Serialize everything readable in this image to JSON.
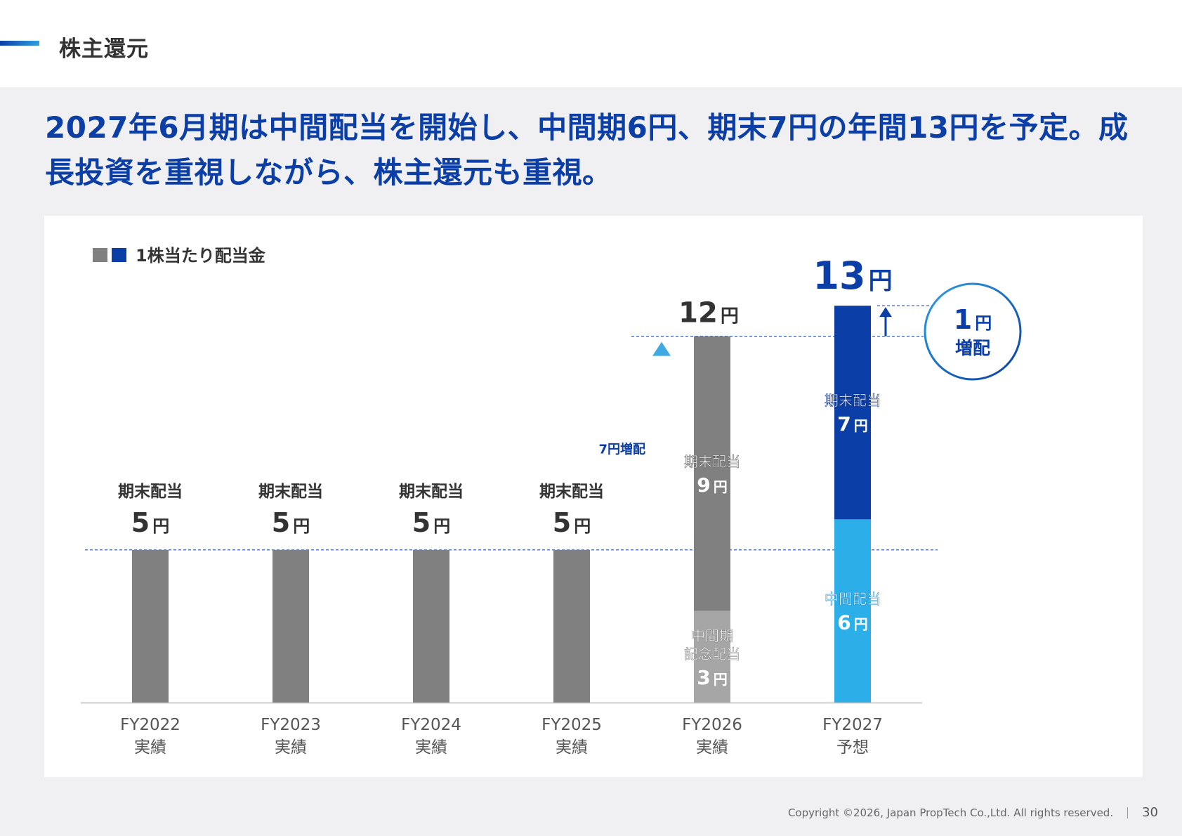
{
  "header": {
    "section_title": "株主還元"
  },
  "headline": "2027年6月期は中間配当を開始し、中間期6円、期末7円の年間13円を予定。成長投資を重視しながら、株主還元も重視。",
  "footer": {
    "copyright": "Copyright ©2026, Japan PropTech Co.,Ltd. All rights reserved.",
    "page_number": "30"
  },
  "colors": {
    "actual_gray": "#808080",
    "commemorative_gray": "#a6a6a6",
    "year_end_blue": "#0b3ea6",
    "interim_blue": "#2caee8"
  },
  "chart_data": {
    "type": "bar",
    "stacked": true,
    "legend": {
      "label": "1株当たり配当金",
      "placement": "top-left"
    },
    "unit": "円",
    "ylim": [
      0,
      13
    ],
    "categories": [
      {
        "year": "FY2022",
        "status": "実績"
      },
      {
        "year": "FY2023",
        "status": "実績"
      },
      {
        "year": "FY2024",
        "status": "実績"
      },
      {
        "year": "FY2025",
        "status": "実績"
      },
      {
        "year": "FY2026",
        "status": "実績"
      },
      {
        "year": "FY2027",
        "status": "予想"
      }
    ],
    "bars": [
      {
        "total": 5,
        "segments": [
          {
            "label": "期末配当",
            "value": 5,
            "color": "#808080",
            "style": "label-above"
          }
        ]
      },
      {
        "total": 5,
        "segments": [
          {
            "label": "期末配当",
            "value": 5,
            "color": "#808080",
            "style": "label-above"
          }
        ]
      },
      {
        "total": 5,
        "segments": [
          {
            "label": "期末配当",
            "value": 5,
            "color": "#808080",
            "style": "label-above"
          }
        ]
      },
      {
        "total": 5,
        "segments": [
          {
            "label": "期末配当",
            "value": 5,
            "color": "#808080",
            "style": "label-above"
          }
        ]
      },
      {
        "total": 12,
        "total_label": "12",
        "segments": [
          {
            "label": "中間期記念配当",
            "label_lines": [
              "中間期",
              "記念配当"
            ],
            "value": 3,
            "color": "#a6a6a6",
            "style": "inside"
          },
          {
            "label": "期末配当",
            "label_lines": [
              "期末配当"
            ],
            "value": 9,
            "color": "#808080",
            "style": "inside"
          }
        ]
      },
      {
        "total": 13,
        "total_label": "13",
        "segments": [
          {
            "label": "中間配当",
            "label_lines": [
              "中間配当"
            ],
            "value": 6,
            "color": "#2caee8",
            "style": "inside"
          },
          {
            "label": "期末配当",
            "label_lines": [
              "期末配当"
            ],
            "value": 7,
            "color": "#0b3ea6",
            "style": "inside"
          }
        ]
      }
    ],
    "annotations": {
      "increase_fy2026": {
        "text": "7円増配",
        "from": 5,
        "to": 12
      },
      "increase_fy2027": {
        "number": "1",
        "unit": "円",
        "text": "増配",
        "from": 12,
        "to": 13
      }
    }
  }
}
